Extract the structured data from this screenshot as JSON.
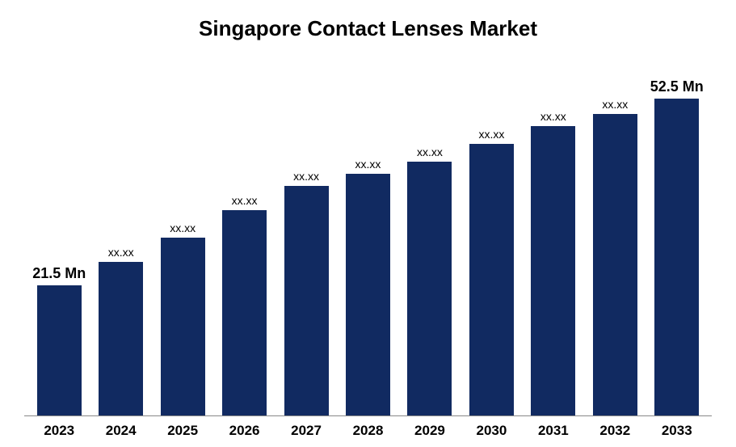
{
  "chart": {
    "type": "bar",
    "title": "Singapore Contact Lenses Market",
    "title_fontsize": 26,
    "title_fontweight": "bold",
    "title_color": "#000000",
    "background_color": "#ffffff",
    "bar_color": "#112a61",
    "axis_line_color": "#888888",
    "categories": [
      "2023",
      "2024",
      "2025",
      "2026",
      "2027",
      "2028",
      "2029",
      "2030",
      "2031",
      "2032",
      "2033"
    ],
    "values": [
      21.5,
      25.5,
      29.5,
      34.0,
      38.0,
      40.0,
      42.0,
      45.0,
      48.0,
      50.0,
      52.5
    ],
    "value_labels": [
      "21.5 Mn",
      "xx.xx",
      "xx.xx",
      "xx.xx",
      "xx.xx",
      "xx.xx",
      "xx.xx",
      "xx.xx",
      "xx.xx",
      "xx.xx",
      "52.5 Mn"
    ],
    "label_fontweight": [
      "bold",
      "normal",
      "normal",
      "normal",
      "normal",
      "normal",
      "normal",
      "normal",
      "normal",
      "normal",
      "bold"
    ],
    "label_fontsize": [
      18,
      14,
      14,
      14,
      14,
      14,
      14,
      14,
      14,
      14,
      18
    ],
    "ymax": 60,
    "bar_width": 0.72,
    "xtick_fontsize": 17,
    "xtick_fontweight": "bold",
    "xtick_color": "#000000"
  }
}
